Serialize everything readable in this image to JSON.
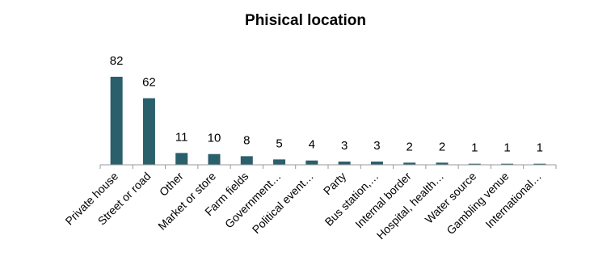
{
  "chart_data": {
    "type": "bar",
    "title": "Phisical location",
    "xlabel": "",
    "ylabel": "",
    "categories": [
      "Private house",
      "Street or road",
      "Other",
      "Market or store",
      "Farm fields",
      "Government…",
      "Political event…",
      "Party",
      "Bus station,…",
      "Internal border",
      "Hospital, health…",
      "Water source",
      "Gambling venue",
      "International…"
    ],
    "values": [
      82,
      62,
      11,
      10,
      8,
      5,
      4,
      3,
      3,
      2,
      2,
      1,
      1,
      1
    ],
    "ylim": [
      0,
      82
    ],
    "grid": false,
    "legend": "none",
    "bar_color": "#2a5f6c",
    "axis_color": "#999999"
  }
}
